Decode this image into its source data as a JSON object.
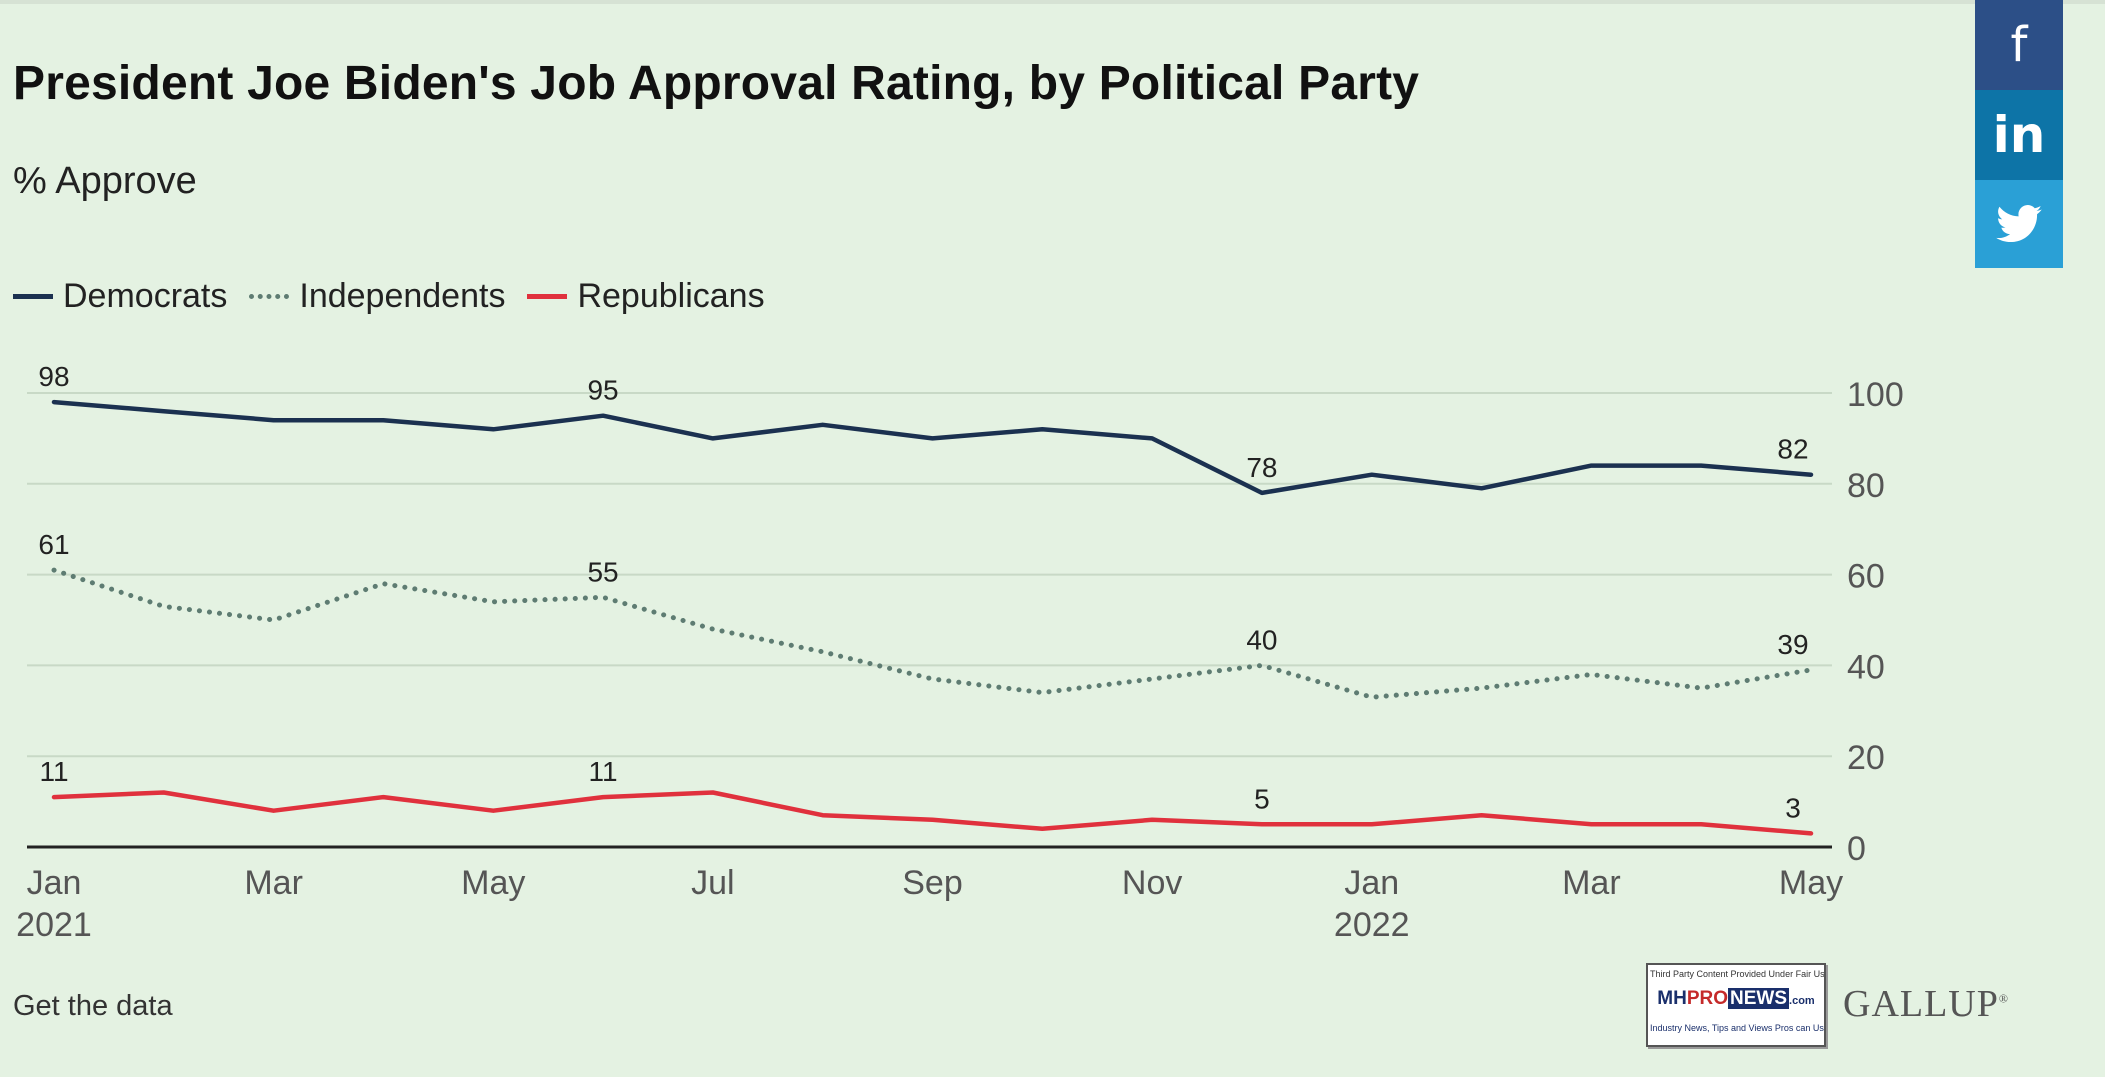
{
  "title": "President Joe Biden's Job Approval Rating, by Political Party",
  "subtitle": "% Approve",
  "legend": [
    {
      "label": "Democrats",
      "style": "solid",
      "color": "#1b3150"
    },
    {
      "label": "Independents",
      "style": "dotted",
      "color": "#5e7c72"
    },
    {
      "label": "Republicans",
      "style": "solid",
      "color": "#e0313d"
    }
  ],
  "footer": {
    "get_data": "Get the data"
  },
  "badge": {
    "top_text": "Third Party Content Provided Under Fair Use Guidelines",
    "logo_mh": "MH",
    "logo_pro": "PRO",
    "logo_news": "NEWS",
    "logo_com": ".com",
    "bottom_text": "Industry News, Tips and Views Pros can Use"
  },
  "brand_logo": "GALLUP",
  "social": {
    "facebook_icon": "f",
    "linkedin_icon": "in",
    "twitter_icon": "twitter-bird-icon"
  },
  "chart_data": {
    "type": "line",
    "title": "President Joe Biden's Job Approval Rating, by Political Party",
    "subtitle": "% Approve",
    "x": [
      "2021-01",
      "2021-02",
      "2021-03",
      "2021-04",
      "2021-05",
      "2021-06",
      "2021-07",
      "2021-08",
      "2021-09",
      "2021-10",
      "2021-11",
      "2021-12",
      "2022-01",
      "2022-02",
      "2022-03",
      "2022-04",
      "2022-05"
    ],
    "x_tick_labels": [
      {
        "x": "2021-01",
        "label": "Jan",
        "year": "2021"
      },
      {
        "x": "2021-03",
        "label": "Mar",
        "year": ""
      },
      {
        "x": "2021-05",
        "label": "May",
        "year": ""
      },
      {
        "x": "2021-07",
        "label": "Jul",
        "year": ""
      },
      {
        "x": "2021-09",
        "label": "Sep",
        "year": ""
      },
      {
        "x": "2021-11",
        "label": "Nov",
        "year": ""
      },
      {
        "x": "2022-01",
        "label": "Jan",
        "year": "2022"
      },
      {
        "x": "2022-03",
        "label": "Mar",
        "year": ""
      },
      {
        "x": "2022-05",
        "label": "May",
        "year": ""
      }
    ],
    "y_ticks": [
      0,
      20,
      40,
      60,
      80,
      100
    ],
    "ylim": [
      0,
      100
    ],
    "y_axis_side": "right",
    "grid": true,
    "legend_position": "top-left",
    "series": [
      {
        "name": "Democrats",
        "color": "#1b3150",
        "style": "solid",
        "values": [
          98,
          96,
          94,
          94,
          92,
          95,
          90,
          93,
          90,
          92,
          90,
          78,
          82,
          79,
          84,
          84,
          82
        ],
        "labeled_points": [
          {
            "x": "2021-01",
            "label": "98"
          },
          {
            "x": "2021-06",
            "label": "95"
          },
          {
            "x": "2021-12",
            "label": "78"
          },
          {
            "x": "2022-05",
            "label": "82"
          }
        ]
      },
      {
        "name": "Independents",
        "color": "#5e7c72",
        "style": "dotted",
        "values": [
          61,
          53,
          50,
          58,
          54,
          55,
          48,
          43,
          37,
          34,
          37,
          40,
          33,
          35,
          38,
          35,
          39
        ],
        "labeled_points": [
          {
            "x": "2021-01",
            "label": "61"
          },
          {
            "x": "2021-06",
            "label": "55"
          },
          {
            "x": "2021-12",
            "label": "40"
          },
          {
            "x": "2022-05",
            "label": "39"
          }
        ]
      },
      {
        "name": "Republicans",
        "color": "#e0313d",
        "style": "solid",
        "values": [
          11,
          12,
          8,
          11,
          8,
          11,
          12,
          7,
          6,
          4,
          6,
          5,
          5,
          7,
          5,
          5,
          3
        ],
        "labeled_points": [
          {
            "x": "2021-01",
            "label": "11"
          },
          {
            "x": "2021-06",
            "label": "11"
          },
          {
            "x": "2021-12",
            "label": "5"
          },
          {
            "x": "2022-05",
            "label": "3"
          }
        ]
      }
    ]
  }
}
